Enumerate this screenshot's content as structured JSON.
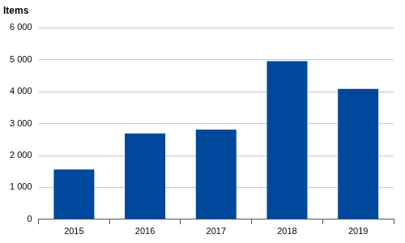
{
  "chart_data": {
    "type": "bar",
    "ylabel": "Items",
    "categories": [
      "2015",
      "2016",
      "2017",
      "2018",
      "2019"
    ],
    "values": [
      1560,
      2690,
      2810,
      4960,
      4090
    ],
    "color": "#00489b",
    "ylim": [
      0,
      6000
    ],
    "yticks": [
      0,
      {
        "value": 1000,
        "label": "1 000"
      },
      {
        "value": 2000,
        "label": "2 000"
      },
      {
        "value": 3000,
        "label": "3 000"
      },
      {
        "value": 4000,
        "label": "4 000"
      },
      {
        "value": 5000,
        "label": "5 000"
      },
      {
        "value": 6000,
        "label": "6 000"
      }
    ],
    "grid": true
  }
}
